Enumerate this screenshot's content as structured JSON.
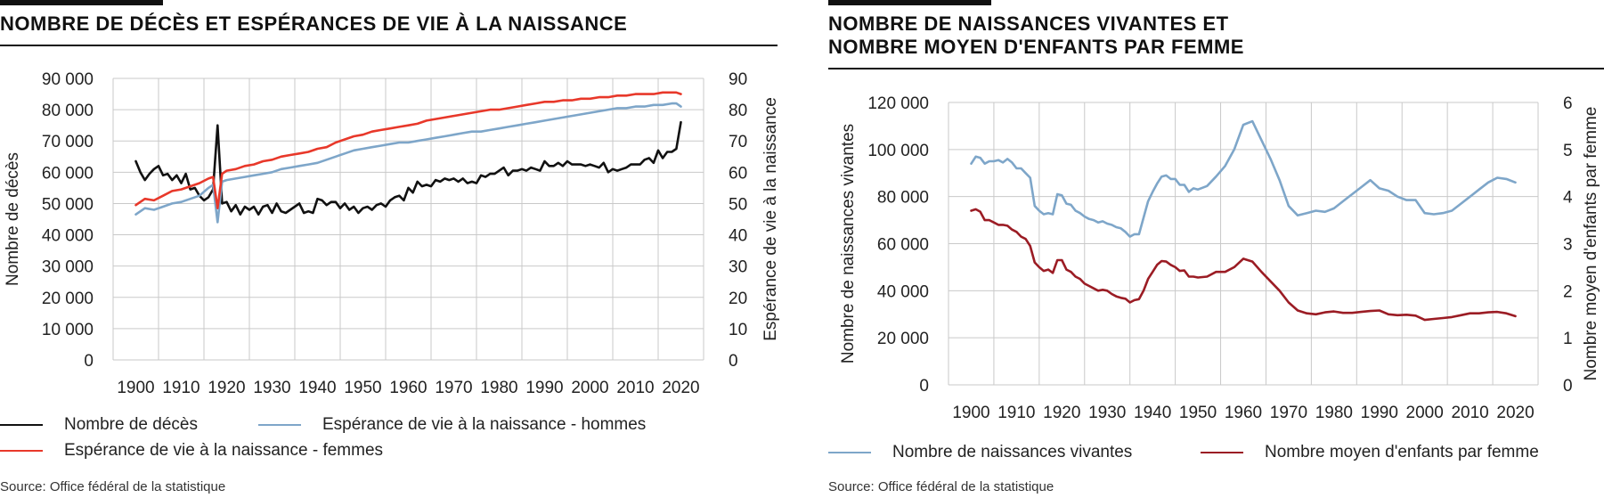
{
  "left": {
    "title": "NOMBRE DE DÉCÈS ET ESPÉRANCES DE VIE À LA NAISSANCE",
    "source": "Source: Office fédéral de la statistique",
    "legend": [
      {
        "label": "Nombre de décès",
        "color": "#111111"
      },
      {
        "label": "Espérance de vie à la naissance - hommes",
        "color": "#7ea6c9"
      },
      {
        "label": "Espérance de vie à la naissance - femmes",
        "color": "#e8382a"
      }
    ]
  },
  "right": {
    "title": "NOMBRE DE NAISSANCES VIVANTES ET\nNOMBRE MOYEN D'ENFANTS PAR FEMME",
    "source": "Source: Office fédéral de la statistique",
    "legend": [
      {
        "label": "Nombre de naissances vivantes",
        "color": "#7ea6c9"
      },
      {
        "label": "Nombre moyen d'enfants par femme",
        "color": "#9b1c24"
      }
    ]
  },
  "chart_data": [
    {
      "type": "line",
      "title": "NOMBRE DE DÉCÈS ET ESPÉRANCES DE VIE À LA NAISSANCE",
      "xlabel": "",
      "ylabel": "Nombre de décès",
      "y2label": "Espérance de vie à la naissance",
      "xlim": [
        1895,
        2025
      ],
      "ylim": [
        0,
        90000
      ],
      "y2lim": [
        0,
        90
      ],
      "xticks": [
        "1900",
        "1910",
        "1920",
        "1930",
        "1940",
        "1950",
        "1960",
        "1970",
        "1980",
        "1990",
        "2000",
        "2010",
        "2020"
      ],
      "yticks": [
        "0",
        "10 000",
        "20 000",
        "30 000",
        "40 000",
        "50 000",
        "60 000",
        "70 000",
        "80 000",
        "90 000"
      ],
      "y2ticks": [
        "0",
        "10",
        "20",
        "30",
        "40",
        "50",
        "60",
        "70",
        "80",
        "90"
      ],
      "grid": true,
      "legend_position": "bottom",
      "series": [
        {
          "name": "Nombre de décès",
          "axis": "left",
          "color": "#111111",
          "x": [
            1900,
            1901,
            1902,
            1903,
            1904,
            1905,
            1906,
            1907,
            1908,
            1909,
            1910,
            1911,
            1912,
            1913,
            1914,
            1915,
            1916,
            1917,
            1918,
            1919,
            1920,
            1921,
            1922,
            1923,
            1924,
            1925,
            1926,
            1927,
            1928,
            1929,
            1930,
            1931,
            1932,
            1933,
            1934,
            1935,
            1936,
            1937,
            1938,
            1939,
            1940,
            1941,
            1942,
            1943,
            1944,
            1945,
            1946,
            1947,
            1948,
            1949,
            1950,
            1951,
            1952,
            1953,
            1954,
            1955,
            1956,
            1957,
            1958,
            1959,
            1960,
            1961,
            1962,
            1963,
            1964,
            1965,
            1966,
            1967,
            1968,
            1969,
            1970,
            1971,
            1972,
            1973,
            1974,
            1975,
            1976,
            1977,
            1978,
            1979,
            1980,
            1981,
            1982,
            1983,
            1984,
            1985,
            1986,
            1987,
            1988,
            1989,
            1990,
            1991,
            1992,
            1993,
            1994,
            1995,
            1996,
            1997,
            1998,
            1999,
            2000,
            2001,
            2002,
            2003,
            2004,
            2005,
            2006,
            2007,
            2008,
            2009,
            2010,
            2011,
            2012,
            2013,
            2014,
            2015,
            2016,
            2017,
            2018,
            2019,
            2020
          ],
          "y": [
            63500,
            60000,
            57500,
            59500,
            61000,
            62000,
            59000,
            59500,
            57500,
            59000,
            56500,
            59500,
            54500,
            55000,
            52500,
            51000,
            52000,
            54500,
            75000,
            50000,
            50500,
            47500,
            49500,
            46500,
            49000,
            48000,
            49000,
            46500,
            49000,
            49500,
            47000,
            50000,
            47500,
            47000,
            48000,
            49000,
            50000,
            47000,
            47500,
            47000,
            51500,
            51000,
            49500,
            50500,
            50500,
            48500,
            50000,
            48000,
            49000,
            47000,
            48500,
            49000,
            48000,
            49500,
            50000,
            49000,
            51000,
            52000,
            52500,
            51000,
            55000,
            53500,
            57000,
            55500,
            56000,
            55500,
            57500,
            57000,
            58000,
            57500,
            58000,
            57000,
            58000,
            56500,
            57000,
            56500,
            59000,
            58500,
            59500,
            59500,
            60500,
            61500,
            59000,
            60500,
            60500,
            61000,
            60500,
            61500,
            61000,
            60500,
            63500,
            62000,
            62000,
            63000,
            62000,
            63500,
            62500,
            62500,
            62500,
            62000,
            62500,
            62000,
            61500,
            63000,
            60000,
            61000,
            60500,
            61000,
            61500,
            62500,
            62500,
            62500,
            64000,
            64500,
            63000,
            67000,
            64500,
            66500,
            66500,
            67500,
            76000
          ]
        },
        {
          "name": "Espérance de vie à la naissance - hommes",
          "axis": "right",
          "color": "#7ea6c9",
          "x": [
            1900,
            1902,
            1904,
            1906,
            1908,
            1910,
            1912,
            1914,
            1916,
            1917,
            1918,
            1919,
            1920,
            1922,
            1924,
            1926,
            1928,
            1930,
            1932,
            1934,
            1936,
            1938,
            1940,
            1942,
            1944,
            1946,
            1948,
            1950,
            1952,
            1954,
            1956,
            1958,
            1960,
            1962,
            1964,
            1966,
            1968,
            1970,
            1972,
            1974,
            1976,
            1978,
            1980,
            1982,
            1984,
            1986,
            1988,
            1990,
            1992,
            1994,
            1996,
            1998,
            2000,
            2002,
            2004,
            2006,
            2008,
            2010,
            2012,
            2014,
            2016,
            2018,
            2019,
            2020
          ],
          "y": [
            46.5,
            48.5,
            48,
            49,
            50,
            50.5,
            51.5,
            52.5,
            55,
            56,
            44,
            57,
            57.5,
            58,
            58.5,
            59,
            59.5,
            60,
            61,
            61.5,
            62,
            62.5,
            63,
            64,
            65,
            66,
            67,
            67.5,
            68,
            68.5,
            69,
            69.5,
            69.5,
            70,
            70.5,
            71,
            71.5,
            72,
            72.5,
            73,
            73,
            73.5,
            74,
            74.5,
            75,
            75.5,
            76,
            76.5,
            77,
            77.5,
            78,
            78.5,
            79,
            79.5,
            80,
            80.5,
            80.5,
            81,
            81,
            81.5,
            81.5,
            82,
            82,
            81
          ]
        },
        {
          "name": "Espérance de vie à la naissance - femmes",
          "axis": "right",
          "color": "#e8382a",
          "x": [
            1900,
            1902,
            1904,
            1906,
            1908,
            1910,
            1912,
            1914,
            1916,
            1917,
            1918,
            1919,
            1920,
            1922,
            1924,
            1926,
            1928,
            1930,
            1932,
            1934,
            1936,
            1938,
            1940,
            1942,
            1944,
            1946,
            1948,
            1950,
            1952,
            1954,
            1956,
            1958,
            1960,
            1962,
            1964,
            1966,
            1968,
            1970,
            1972,
            1974,
            1976,
            1978,
            1980,
            1982,
            1984,
            1986,
            1988,
            1990,
            1992,
            1994,
            1996,
            1998,
            2000,
            2002,
            2004,
            2006,
            2008,
            2010,
            2012,
            2014,
            2016,
            2018,
            2019,
            2020
          ],
          "y": [
            49.5,
            51.5,
            51,
            52.5,
            54,
            54.5,
            55.5,
            56.5,
            58,
            58.5,
            48.5,
            59.5,
            60.5,
            61,
            62,
            62.5,
            63.5,
            64,
            65,
            65.5,
            66,
            66.5,
            67.5,
            68,
            69.5,
            70.5,
            71.5,
            72,
            73,
            73.5,
            74,
            74.5,
            75,
            75.5,
            76.5,
            77,
            77.5,
            78,
            78.5,
            79,
            79.5,
            80,
            80,
            80.5,
            81,
            81.5,
            82,
            82.5,
            82.5,
            83,
            83,
            83.5,
            83.5,
            84,
            84,
            84.5,
            84.5,
            85,
            85,
            85,
            85.5,
            85.5,
            85.5,
            85
          ]
        }
      ]
    },
    {
      "type": "line",
      "title": "NOMBRE DE NAISSANCES VIVANTES ET NOMBRE MOYEN D'ENFANTS PAR FEMME",
      "xlabel": "",
      "ylabel": "Nombre de naissances vivantes",
      "y2label": "Nombre moyen d'enfants par femme",
      "xlim": [
        1895,
        2025
      ],
      "ylim": [
        0,
        120000
      ],
      "y2lim": [
        0,
        6
      ],
      "xticks": [
        "1900",
        "1910",
        "1920",
        "1930",
        "1940",
        "1950",
        "1960",
        "1970",
        "1980",
        "1990",
        "2000",
        "2010",
        "2020"
      ],
      "yticks": [
        "0",
        "20 000",
        "40 000",
        "60 000",
        "80 000",
        "100 000",
        "120 000"
      ],
      "y2ticks": [
        "0",
        "1",
        "2",
        "3",
        "4",
        "5",
        "6"
      ],
      "grid": true,
      "legend_position": "bottom",
      "series": [
        {
          "name": "Nombre de naissances vivantes",
          "axis": "left",
          "color": "#7ea6c9",
          "x": [
            1900,
            1901,
            1902,
            1903,
            1904,
            1905,
            1906,
            1907,
            1908,
            1909,
            1910,
            1911,
            1912,
            1913,
            1914,
            1915,
            1916,
            1917,
            1918,
            1919,
            1920,
            1921,
            1922,
            1923,
            1924,
            1925,
            1926,
            1927,
            1928,
            1929,
            1930,
            1931,
            1932,
            1933,
            1934,
            1935,
            1936,
            1937,
            1938,
            1939,
            1940,
            1941,
            1942,
            1943,
            1944,
            1945,
            1946,
            1947,
            1948,
            1949,
            1950,
            1952,
            1954,
            1956,
            1958,
            1960,
            1962,
            1964,
            1966,
            1968,
            1970,
            1972,
            1974,
            1976,
            1978,
            1980,
            1982,
            1984,
            1986,
            1988,
            1990,
            1992,
            1994,
            1996,
            1998,
            2000,
            2002,
            2004,
            2006,
            2008,
            2010,
            2012,
            2014,
            2016,
            2018,
            2020
          ],
          "y": [
            94000,
            97000,
            96500,
            94000,
            95000,
            95000,
            95500,
            94500,
            96000,
            94500,
            92000,
            92000,
            90000,
            88000,
            76000,
            74000,
            72500,
            73000,
            72500,
            81000,
            80500,
            77000,
            76500,
            74000,
            73000,
            71500,
            70500,
            70000,
            69000,
            69500,
            68500,
            68000,
            67000,
            66500,
            65000,
            63000,
            64000,
            64000,
            71000,
            78000,
            82000,
            85500,
            88500,
            89000,
            87500,
            87500,
            85000,
            85000,
            82000,
            83500,
            83000,
            84500,
            88500,
            93000,
            100000,
            110500,
            112000,
            104000,
            96000,
            87000,
            76000,
            72000,
            73000,
            74000,
            73500,
            75000,
            78000,
            81000,
            84000,
            87000,
            83500,
            82500,
            80000,
            78500,
            78500,
            73000,
            72500,
            73000,
            74000,
            77000,
            80000,
            83000,
            86000,
            88000,
            87500,
            86000
          ]
        },
        {
          "name": "Nombre moyen d'enfants par femme",
          "axis": "right",
          "color": "#9b1c24",
          "x": [
            1900,
            1901,
            1902,
            1903,
            1904,
            1905,
            1906,
            1907,
            1908,
            1909,
            1910,
            1911,
            1912,
            1913,
            1914,
            1915,
            1916,
            1917,
            1918,
            1919,
            1920,
            1921,
            1922,
            1923,
            1924,
            1925,
            1926,
            1927,
            1928,
            1929,
            1930,
            1931,
            1932,
            1933,
            1934,
            1935,
            1936,
            1937,
            1938,
            1939,
            1940,
            1941,
            1942,
            1943,
            1944,
            1945,
            1946,
            1947,
            1948,
            1949,
            1950,
            1952,
            1954,
            1956,
            1958,
            1960,
            1962,
            1964,
            1966,
            1968,
            1970,
            1972,
            1974,
            1976,
            1978,
            1980,
            1982,
            1984,
            1986,
            1988,
            1990,
            1992,
            1994,
            1996,
            1998,
            2000,
            2002,
            2004,
            2006,
            2008,
            2010,
            2012,
            2014,
            2016,
            2018,
            2020
          ],
          "y": [
            3.7,
            3.73,
            3.68,
            3.5,
            3.5,
            3.45,
            3.4,
            3.4,
            3.38,
            3.3,
            3.25,
            3.15,
            3.1,
            2.95,
            2.6,
            2.5,
            2.42,
            2.45,
            2.38,
            2.65,
            2.65,
            2.45,
            2.4,
            2.3,
            2.25,
            2.15,
            2.1,
            2.05,
            2.0,
            2.02,
            2.0,
            1.93,
            1.88,
            1.85,
            1.83,
            1.75,
            1.8,
            1.82,
            2.0,
            2.25,
            2.4,
            2.55,
            2.63,
            2.62,
            2.55,
            2.5,
            2.42,
            2.43,
            2.3,
            2.3,
            2.28,
            2.3,
            2.4,
            2.4,
            2.5,
            2.68,
            2.62,
            2.4,
            2.2,
            2.0,
            1.75,
            1.58,
            1.52,
            1.5,
            1.54,
            1.56,
            1.53,
            1.53,
            1.55,
            1.57,
            1.58,
            1.5,
            1.48,
            1.49,
            1.47,
            1.38,
            1.4,
            1.42,
            1.44,
            1.48,
            1.52,
            1.52,
            1.54,
            1.55,
            1.52,
            1.46
          ]
        }
      ]
    }
  ]
}
